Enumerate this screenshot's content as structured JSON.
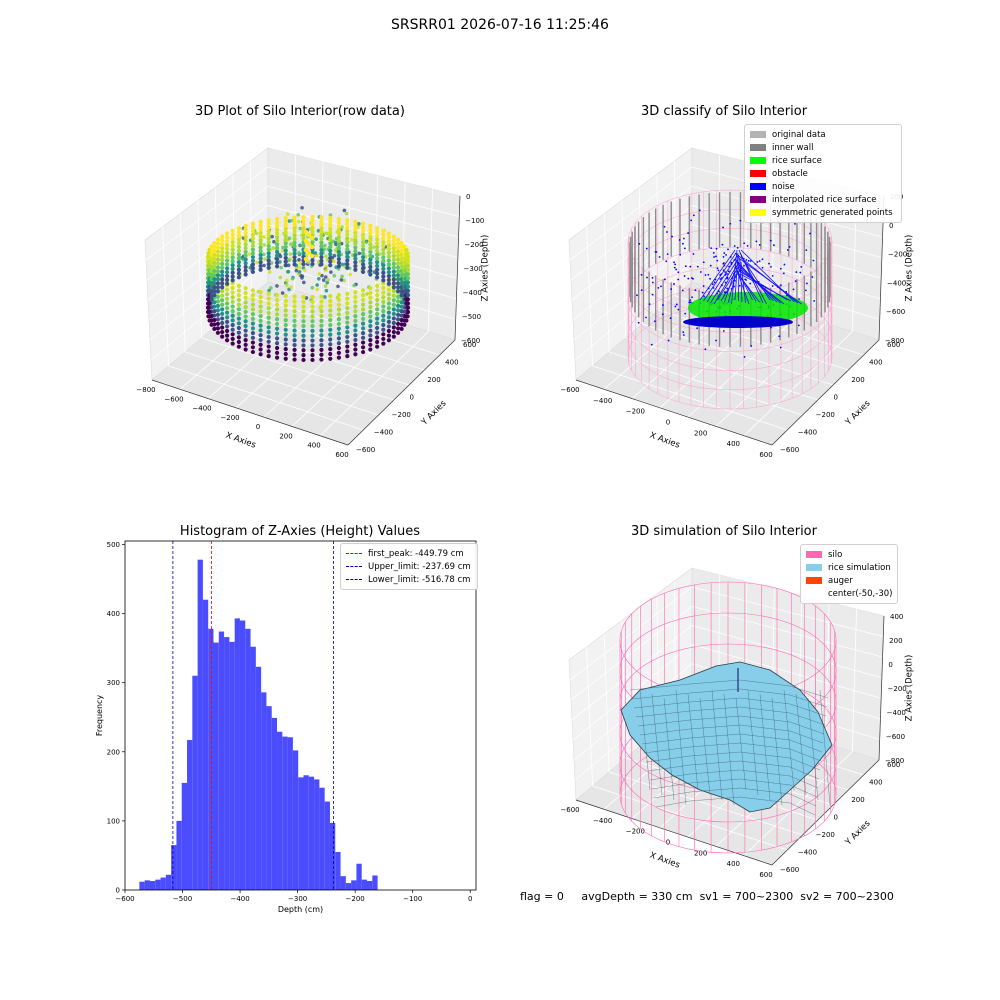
{
  "suptitle": "SRSRR01 2026-07-16 11:25:46",
  "chart_data": [
    {
      "type": "scatter",
      "title": "3D Plot of Silo Interior(row data)",
      "xlabel": "X Axies",
      "ylabel": "Y Axies",
      "zlabel": "Z Axies (Depth)",
      "xticks": [
        "−800",
        "−600",
        "−400",
        "−200",
        "0",
        "200",
        "400",
        "600"
      ],
      "yticks": [
        "−600",
        "−400",
        "−200",
        "0",
        "200",
        "400",
        "600"
      ],
      "zticks": [
        "0",
        "−100",
        "−200",
        "−300",
        "−400",
        "−500",
        "−600"
      ],
      "colormap": "viridis"
    },
    {
      "type": "scatter",
      "title": "3D classify of Silo Interior",
      "xlabel": "X Axies",
      "ylabel": "Y Axies",
      "zlabel": "Z Axies (Depth)",
      "xticks": [
        "−600",
        "−400",
        "−200",
        "0",
        "200",
        "400",
        "600"
      ],
      "yticks": [
        "−600",
        "−400",
        "−200",
        "0",
        "200",
        "400",
        "600"
      ],
      "zticks": [
        "200",
        "0",
        "−200",
        "−400",
        "−600",
        "−800"
      ],
      "legend": [
        {
          "label": "original data",
          "color": "#b3b3b3"
        },
        {
          "label": "inner wall",
          "color": "#808080"
        },
        {
          "label": "rice surface",
          "color": "#00ff00"
        },
        {
          "label": "obstacle",
          "color": "#ff0000"
        },
        {
          "label": "noise",
          "color": "#0000ff"
        },
        {
          "label": "interpolated rice surface",
          "color": "#800080"
        },
        {
          "label": "symmetric generated points",
          "color": "#ffff00"
        }
      ]
    },
    {
      "type": "bar",
      "title": "Histogram of Z-Axies (Height) Values",
      "xlabel": "Depth (cm)",
      "ylabel": "Frequency",
      "xlim": [
        -600,
        10
      ],
      "ylim": [
        0,
        505
      ],
      "xticks": [
        -600,
        -500,
        -400,
        -300,
        -200,
        -100,
        0
      ],
      "yticks": [
        0,
        100,
        200,
        300,
        400,
        500
      ],
      "bin_start": -575,
      "bin_width": 9.2,
      "values": [
        12,
        14,
        13,
        15,
        18,
        22,
        65,
        100,
        155,
        217,
        310,
        478,
        420,
        378,
        358,
        374,
        366,
        359,
        393,
        390,
        378,
        352,
        323,
        286,
        266,
        249,
        229,
        222,
        221,
        202,
        163,
        166,
        164,
        160,
        148,
        128,
        97,
        55,
        20,
        10,
        14,
        38,
        15,
        13,
        21
      ],
      "color": "#4c4cff",
      "lines": [
        {
          "label": "first_peak: -449.79 cm",
          "x": -449.79,
          "color": "#ff0000"
        },
        {
          "label": "Upper_limit: -237.69 cm",
          "x": -237.69,
          "color": "#0000aa"
        },
        {
          "label": "Lower_limit: -516.78 cm",
          "x": -516.78,
          "color": "#0000aa"
        }
      ]
    },
    {
      "type": "surface",
      "title": "3D simulation of Silo Interior",
      "xlabel": "X Axies",
      "ylabel": "Y Axies",
      "zlabel": "Z Axies (Depth)",
      "xticks": [
        "−600",
        "−400",
        "−200",
        "0",
        "200",
        "400",
        "600"
      ],
      "yticks": [
        "−600",
        "−400",
        "−200",
        "0",
        "200",
        "400",
        "600"
      ],
      "zticks": [
        "400",
        "200",
        "0",
        "−200",
        "−400",
        "−600",
        "−800"
      ],
      "legend": [
        {
          "label": "silo",
          "color": "#ff69b4"
        },
        {
          "label": "rice simulation",
          "color": "#87ceeb"
        },
        {
          "label": "auger",
          "color": "#ff4500"
        },
        {
          "label": "center(-50,-30)",
          "color": ""
        }
      ]
    }
  ],
  "status": {
    "flag": "flag = 0",
    "avg": "avgDepth = 330 cm",
    "sv1": "sv1 = 700~2300",
    "sv2": "sv2 = 700~2300"
  }
}
